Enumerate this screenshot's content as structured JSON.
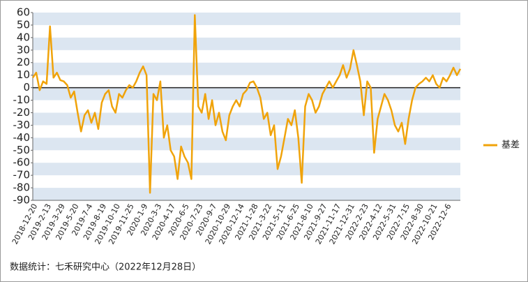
{
  "chart_data": {
    "type": "line",
    "categories": [
      "2018-12-20",
      null,
      null,
      null,
      "2019-2-13",
      null,
      null,
      null,
      "2019-3-29",
      null,
      null,
      null,
      "2019-5-20",
      null,
      null,
      null,
      "2019-7-4",
      null,
      null,
      null,
      "2019-8-19",
      null,
      null,
      null,
      "2019-10-10",
      null,
      null,
      null,
      "2019-11-25",
      null,
      null,
      null,
      "2020-1-9",
      null,
      null,
      null,
      "2020-3-3",
      null,
      null,
      null,
      "2020-4-17",
      null,
      null,
      null,
      "2020-6-5",
      null,
      null,
      null,
      "2020-7-23",
      null,
      null,
      null,
      "2020-9-7",
      null,
      null,
      null,
      "2020-10-29",
      null,
      null,
      null,
      "2020-12-14",
      null,
      null,
      null,
      "2021-1-28",
      null,
      null,
      null,
      "2021-3-22",
      null,
      null,
      null,
      "2021-5-11",
      null,
      null,
      null,
      "2021-6-25",
      null,
      null,
      null,
      "2021-8-10",
      null,
      null,
      null,
      "2021-9-27",
      null,
      null,
      null,
      "2021-11-17",
      null,
      null,
      null,
      "2021-12-31",
      null,
      null,
      null,
      "2022-2-23",
      null,
      null,
      null,
      "2022-4-12",
      null,
      null,
      null,
      "2022-5-31",
      null,
      null,
      null,
      "2022-7-15",
      null,
      null,
      null,
      "2022-8-30",
      null,
      null,
      null,
      "2022-10-21",
      null,
      null,
      null,
      "2022-12-6",
      null,
      null,
      null,
      null
    ],
    "series": [
      {
        "name": "基差",
        "color": "#f0a30a",
        "values": [
          8,
          12,
          -2,
          5,
          3,
          49,
          8,
          12,
          6,
          5,
          2,
          -8,
          -3,
          -20,
          -35,
          -22,
          -18,
          -28,
          -20,
          -33,
          -12,
          -5,
          -2,
          -15,
          -20,
          -5,
          -8,
          -2,
          2,
          0,
          5,
          12,
          17,
          10,
          -84,
          -5,
          -10,
          5,
          -40,
          -30,
          -50,
          -55,
          -73,
          -47,
          -55,
          -60,
          -73,
          58,
          -15,
          -20,
          -5,
          -25,
          -10,
          -30,
          -20,
          -35,
          -42,
          -22,
          -15,
          -10,
          -15,
          -5,
          -2,
          4,
          5,
          0,
          -8,
          -25,
          -20,
          -38,
          -30,
          -65,
          -55,
          -40,
          -25,
          -30,
          -18,
          -40,
          -76,
          -15,
          -5,
          -10,
          -20,
          -15,
          -5,
          0,
          5,
          0,
          5,
          10,
          18,
          8,
          15,
          30,
          18,
          5,
          -22,
          5,
          0,
          -52,
          -25,
          -15,
          -5,
          -10,
          -18,
          -30,
          -35,
          -28,
          -45,
          -25,
          -10,
          0,
          3,
          5,
          8,
          5,
          10,
          3,
          0,
          8,
          5,
          10,
          16,
          10,
          15
        ]
      }
    ],
    "ylim": [
      -90,
      60
    ],
    "yticks": [
      -90,
      -80,
      -70,
      -60,
      -50,
      -40,
      -30,
      -20,
      -10,
      0,
      10,
      20,
      30,
      40,
      50,
      60
    ],
    "legend": "right",
    "footnote": "数据统计：七禾研究中心（2022年12月28日）"
  }
}
